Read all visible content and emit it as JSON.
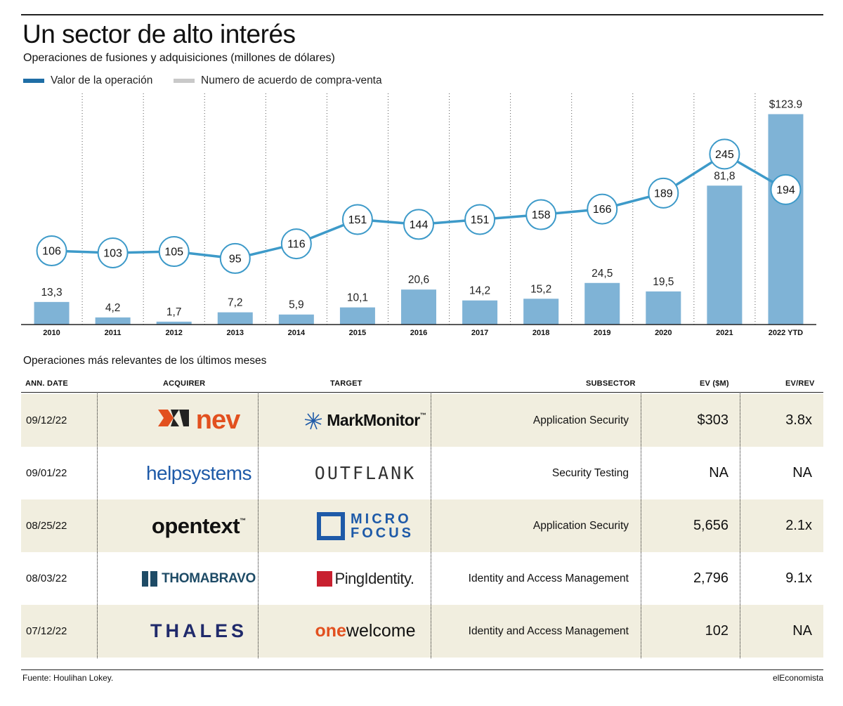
{
  "header": {
    "title": "Un sector de alto interés",
    "subtitle": "Operaciones de fusiones y adquisiciones (millones de dólares)"
  },
  "legend": {
    "value_label": "Valor de la operación",
    "count_label": "Numero de acuerdo de compra-venta",
    "value_color": "#1f6ea6",
    "count_color": "#c9c9c9"
  },
  "chart_data": {
    "type": "bar",
    "categories": [
      "2010",
      "2011",
      "2012",
      "2013",
      "2014",
      "2015",
      "2016",
      "2017",
      "2018",
      "2019",
      "2020",
      "2021",
      "2022 YTD"
    ],
    "value_labels": [
      "13,3",
      "4,2",
      "1,7",
      "7,2",
      "5,9",
      "10,1",
      "20,6",
      "14,2",
      "15,2",
      "24,5",
      "19,5",
      "81,8",
      "$123.9"
    ],
    "series": [
      {
        "name": "Valor de la operación",
        "type": "bar",
        "color": "#7fb3d6",
        "values": [
          13.3,
          4.2,
          1.7,
          7.2,
          5.9,
          10.1,
          20.6,
          14.2,
          15.2,
          24.5,
          19.5,
          81.8,
          123.9
        ]
      },
      {
        "name": "Numero de acuerdo de compra-venta",
        "type": "line",
        "color": "#3d9ac9",
        "values": [
          106,
          103,
          105,
          95,
          116,
          151,
          144,
          151,
          158,
          166,
          189,
          245,
          194
        ]
      }
    ],
    "line_labels": [
      "106",
      "103",
      "105",
      "95",
      "116",
      "151",
      "144",
      "151",
      "158",
      "166",
      "189",
      "245",
      "194"
    ],
    "bar_ylim": [
      0,
      127
    ],
    "line_ylim": [
      0,
      310
    ],
    "grid": "vertical-dotted"
  },
  "table": {
    "section_title": "Operaciones más relevantes de los últimos meses",
    "headers": {
      "date": "ANN. DATE",
      "acquirer": "ACQUIRER",
      "target": "TARGET",
      "subsector": "SUBSECTOR",
      "ev": "EV ($M)",
      "evrev": "EV/REV"
    },
    "rows": [
      {
        "date": "09/12/22",
        "acquirer_logo": "nev",
        "target_logo": "MarkMonitor",
        "target_tm": "™",
        "subsector": "Application Security",
        "ev": "$303",
        "evrev": "3.8x"
      },
      {
        "date": "09/01/22",
        "acquirer_logo": "helpsystems",
        "target_logo": "OUTFLANK",
        "subsector": "Security Testing",
        "ev": "NA",
        "evrev": "NA"
      },
      {
        "date": "08/25/22",
        "acquirer_logo": "opentext",
        "acquirer_tm": "™",
        "target_logo_1": "MICRO",
        "target_logo_2": "FOCUS",
        "subsector": "Application Security",
        "ev": "5,656",
        "evrev": "2.1x"
      },
      {
        "date": "08/03/22",
        "acquirer_logo": "THOMABRAVO",
        "target_logo": "PingIdentity.",
        "subsector": "Identity and Access Management",
        "ev": "2,796",
        "evrev": "9.1x"
      },
      {
        "date": "07/12/22",
        "acquirer_logo": "THALES",
        "target_logo_1": "one",
        "target_logo_2": "welcome",
        "subsector": "Identity and Access Management",
        "ev": "102",
        "evrev": "NA"
      }
    ]
  },
  "footer": {
    "source": "Fuente: Houlihan Lokey.",
    "brand": "elEconomista"
  }
}
